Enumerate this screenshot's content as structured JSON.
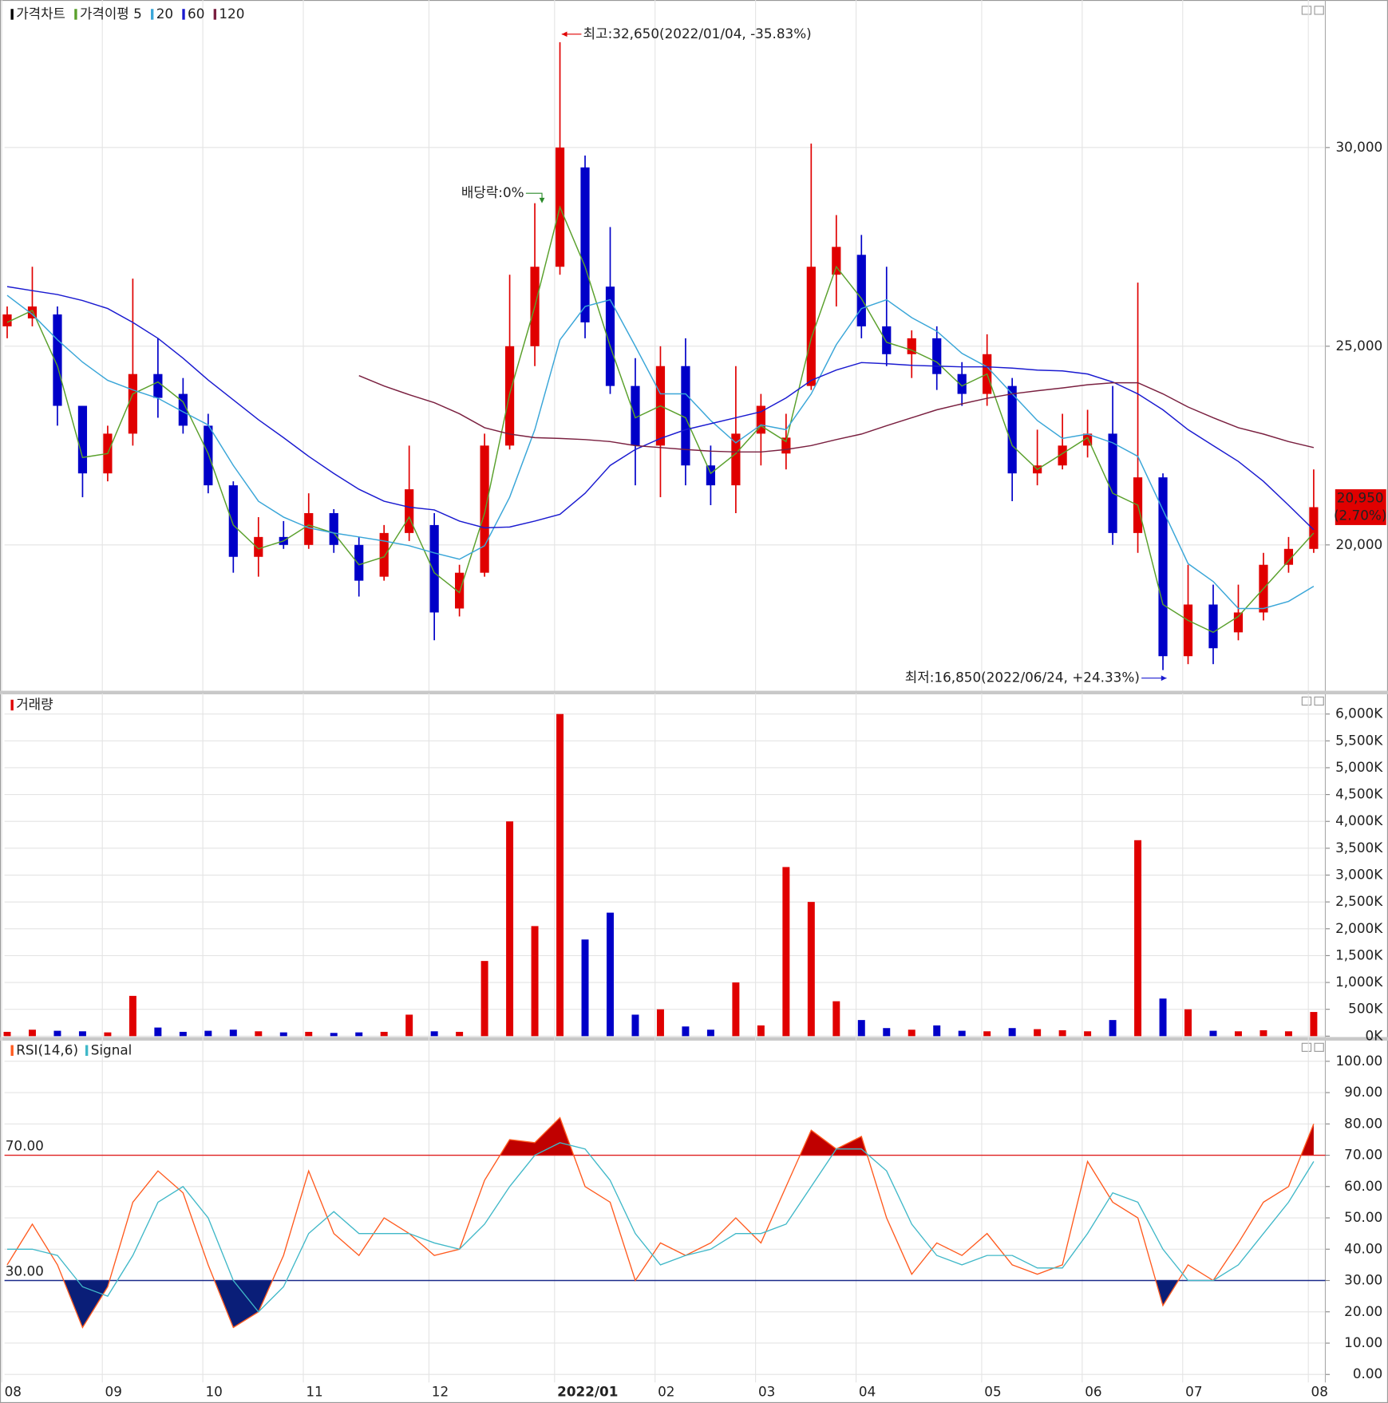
{
  "chart_data": [
    {
      "type": "candlestick",
      "candles": {
        "name": "가격차트",
        "up_color": "#e00000",
        "down_color": "#0000c8",
        "open": [
          25500,
          25700,
          25800,
          23500,
          21800,
          22800,
          24300,
          23800,
          23000,
          21500,
          19700,
          20200,
          20000,
          20800,
          20000,
          19200,
          20300,
          20500,
          18400,
          19300,
          22500,
          25000,
          27000,
          29500,
          26500,
          24000,
          22500,
          24500,
          22000,
          21500,
          22800,
          22300,
          24000,
          26800,
          27300,
          25500,
          24800,
          25200,
          24300,
          23800,
          24000,
          21800,
          22000,
          22500,
          22800,
          20300,
          21700,
          17200,
          18500,
          17800,
          18300,
          19500,
          19900
        ],
        "high": [
          26000,
          27000,
          26000,
          23500,
          23000,
          26700,
          25200,
          24200,
          23300,
          21600,
          20700,
          20600,
          21300,
          20900,
          20200,
          20500,
          22500,
          20800,
          19500,
          22800,
          26800,
          28600,
          32650,
          29800,
          28000,
          24700,
          25000,
          25200,
          22500,
          24500,
          23800,
          23300,
          30100,
          28300,
          27800,
          27000,
          25400,
          25500,
          24600,
          25300,
          24200,
          22900,
          23300,
          23400,
          24000,
          26600,
          21800,
          19500,
          19000,
          19000,
          19800,
          20200,
          21900
        ],
        "low": [
          25200,
          25500,
          23000,
          21200,
          21600,
          22500,
          23200,
          22800,
          21300,
          19300,
          19200,
          19900,
          19900,
          19800,
          18700,
          19100,
          20100,
          17600,
          18200,
          19200,
          22400,
          24500,
          26800,
          25200,
          23800,
          21500,
          21200,
          21500,
          21000,
          20800,
          22000,
          21900,
          23900,
          26000,
          25200,
          24500,
          24200,
          23900,
          23500,
          23500,
          21100,
          21500,
          21900,
          22200,
          20000,
          19800,
          16850,
          17000,
          17000,
          17600,
          18100,
          19300,
          19800
        ],
        "close": [
          25800,
          26000,
          23500,
          21800,
          22800,
          24300,
          23700,
          23000,
          21500,
          19700,
          20200,
          20000,
          20800,
          20000,
          19100,
          20300,
          21400,
          18300,
          19300,
          22500,
          25000,
          27000,
          30000,
          25600,
          24000,
          22500,
          24500,
          22000,
          21500,
          22800,
          23500,
          22700,
          27000,
          27500,
          25500,
          24800,
          25200,
          24300,
          23800,
          24800,
          21800,
          22000,
          22500,
          22800,
          20300,
          21700,
          17200,
          18500,
          17400,
          18300,
          19500,
          19900,
          20950
        ]
      },
      "series": [
        {
          "name": "가격이평 5",
          "color": "#5aa02c",
          "values": [
            25600,
            25900,
            24500,
            22200,
            22300,
            23800,
            24100,
            23600,
            22300,
            20500,
            19900,
            20100,
            20500,
            20300,
            19500,
            19700,
            20700,
            19300,
            18800,
            20800,
            23800,
            26000,
            28500,
            27000,
            25000,
            23200,
            23500,
            23200,
            21800,
            22300,
            23000,
            22600,
            25200,
            27000,
            26200,
            25100,
            24900,
            24600,
            24000,
            24300,
            22500,
            21900,
            22300,
            22700,
            21300,
            21000,
            18500,
            18100,
            17800,
            18200,
            18900,
            19600,
            20300
          ]
        },
        {
          "name": "20",
          "color": "#3aa6d8",
          "values": [
            26280,
            25800,
            25160,
            24600,
            24140,
            23900,
            23690,
            23350,
            23020,
            22000,
            21100,
            20700,
            20430,
            20300,
            20200,
            20100,
            19980,
            19800,
            19640,
            19980,
            21200,
            22900,
            25160,
            26000,
            26170,
            25000,
            23800,
            23800,
            23130,
            22570,
            23020,
            22900,
            23800,
            25040,
            25950,
            26170,
            25720,
            25380,
            24820,
            24480,
            23800,
            23130,
            22680,
            22790,
            22570,
            22230,
            20880,
            19530,
            19080,
            18400,
            18400,
            18580,
            18960
          ]
        },
        {
          "name": "60",
          "color": "#1a1ad0",
          "values": [
            26500,
            26400,
            26300,
            26150,
            25950,
            25600,
            25200,
            24700,
            24150,
            23650,
            23150,
            22700,
            22230,
            21800,
            21400,
            21100,
            20950,
            20880,
            20600,
            20430,
            20450,
            20600,
            20770,
            21300,
            22000,
            22400,
            22680,
            22900,
            23050,
            23200,
            23350,
            23700,
            24140,
            24400,
            24590,
            24560,
            24520,
            24500,
            24480,
            24480,
            24450,
            24400,
            24380,
            24300,
            24100,
            23800,
            23400,
            22900,
            22500,
            22100,
            21600,
            21000,
            20380
          ]
        },
        {
          "name": "120",
          "color": "#7a2040",
          "values": [
            null,
            null,
            null,
            null,
            null,
            null,
            null,
            null,
            null,
            null,
            null,
            null,
            null,
            null,
            24260,
            24000,
            23780,
            23580,
            23300,
            22950,
            22790,
            22700,
            22680,
            22650,
            22600,
            22500,
            22450,
            22400,
            22360,
            22340,
            22340,
            22400,
            22500,
            22650,
            22790,
            23000,
            23200,
            23400,
            23550,
            23690,
            23800,
            23880,
            23950,
            24030,
            24080,
            24080,
            23800,
            23470,
            23200,
            22950,
            22790,
            22600,
            22450
          ]
        }
      ],
      "ylim": [
        16330,
        33600
      ],
      "yticks": [
        {
          "value": 20000,
          "label": "20,000"
        },
        {
          "value": 25000,
          "label": "25,000"
        },
        {
          "value": 30000,
          "label": "30,000"
        }
      ],
      "grid": true,
      "annotations": [
        {
          "text": "최고:32,650(2022/01/04, -35.83%)",
          "index": 22,
          "value": 32650,
          "color": "#e00000"
        },
        {
          "text": "배당락:0%",
          "index": 21,
          "value": 28600,
          "color": "#2a8a2a"
        },
        {
          "text": "최저:16,850(2022/06/24, +24.33%)",
          "index": 46,
          "value": 16850,
          "color": "#1a1ad0"
        }
      ],
      "last_price": {
        "value": 20950,
        "label": "20,950",
        "change": "(2.70%)",
        "color": "#e00000"
      }
    },
    {
      "type": "bar",
      "series": [
        {
          "name": "거래량",
          "color": "#e00000",
          "values": [
            80,
            120,
            100,
            90,
            70,
            750,
            160,
            80,
            100,
            120,
            90,
            70,
            80,
            60,
            70,
            80,
            400,
            90,
            80,
            1400,
            4000,
            2050,
            6000,
            1800,
            2300,
            400,
            500,
            180,
            120,
            1000,
            200,
            3150,
            2500,
            650,
            300,
            150,
            120,
            200,
            100,
            90,
            150,
            130,
            110,
            90,
            300,
            3650,
            700,
            500,
            100,
            90,
            110,
            90,
            450
          ]
        }
      ],
      "ylim": [
        0,
        6300
      ],
      "yticks": [
        {
          "value": 0,
          "label": "0K"
        },
        {
          "value": 500,
          "label": "500K"
        },
        {
          "value": 1000,
          "label": "1,000K"
        },
        {
          "value": 1500,
          "label": "1,500K"
        },
        {
          "value": 2000,
          "label": "2,000K"
        },
        {
          "value": 2500,
          "label": "2,500K"
        },
        {
          "value": 3000,
          "label": "3,000K"
        },
        {
          "value": 3500,
          "label": "3,500K"
        },
        {
          "value": 4000,
          "label": "4,000K"
        },
        {
          "value": 4500,
          "label": "4,500K"
        },
        {
          "value": 5000,
          "label": "5,000K"
        },
        {
          "value": 5500,
          "label": "5,500K"
        },
        {
          "value": 6000,
          "label": "6,000K"
        }
      ],
      "grid": true
    },
    {
      "type": "line",
      "categories": [
        "08",
        null,
        null,
        null,
        "09",
        null,
        null,
        null,
        "10",
        null,
        null,
        null,
        "11",
        null,
        null,
        null,
        null,
        "12",
        null,
        null,
        null,
        null,
        "2022/01",
        null,
        null,
        null,
        "02",
        null,
        null,
        null,
        "03",
        null,
        null,
        null,
        "04",
        null,
        null,
        null,
        null,
        "05",
        null,
        null,
        null,
        "06",
        null,
        null,
        null,
        "07",
        null,
        null,
        null,
        null,
        "08"
      ],
      "series": [
        {
          "name": "RSI(14,6)",
          "color": "#ff5a1e",
          "values": [
            35,
            48,
            35,
            15,
            28,
            55,
            65,
            58,
            35,
            15,
            20,
            38,
            65,
            45,
            38,
            50,
            45,
            38,
            40,
            62,
            75,
            74,
            82,
            60,
            55,
            30,
            42,
            38,
            42,
            50,
            42,
            60,
            78,
            72,
            76,
            50,
            32,
            42,
            38,
            45,
            35,
            32,
            35,
            68,
            55,
            50,
            22,
            35,
            30,
            42,
            55,
            60,
            80
          ]
        },
        {
          "name": "Signal",
          "color": "#40b8c8",
          "values": [
            40,
            40,
            38,
            28,
            25,
            38,
            55,
            60,
            50,
            30,
            20,
            28,
            45,
            52,
            45,
            45,
            45,
            42,
            40,
            48,
            60,
            70,
            74,
            72,
            62,
            45,
            35,
            38,
            40,
            45,
            45,
            48,
            60,
            72,
            72,
            65,
            48,
            38,
            35,
            38,
            38,
            34,
            34,
            45,
            58,
            55,
            40,
            30,
            30,
            35,
            45,
            55,
            68
          ]
        }
      ],
      "levels": [
        {
          "value": 70,
          "label": "70.00",
          "color": "#e02020",
          "fill": "#c00000"
        },
        {
          "value": 30,
          "label": "30.00",
          "color": "#1a2a8a",
          "fill": "#0a1e78"
        }
      ],
      "ylim": [
        -7.4,
        106.6
      ],
      "yticks": [
        {
          "value": 0,
          "label": "0.00"
        },
        {
          "value": 10,
          "label": "10.00"
        },
        {
          "value": 20,
          "label": "20.00"
        },
        {
          "value": 30,
          "label": "30.00"
        },
        {
          "value": 40,
          "label": "40.00"
        },
        {
          "value": 50,
          "label": "50.00"
        },
        {
          "value": 60,
          "label": "60.00"
        },
        {
          "value": 70,
          "label": "70.00"
        },
        {
          "value": 80,
          "label": "80.00"
        },
        {
          "value": 90,
          "label": "90.00"
        },
        {
          "value": 100,
          "label": "100.00"
        }
      ],
      "grid": true
    }
  ]
}
